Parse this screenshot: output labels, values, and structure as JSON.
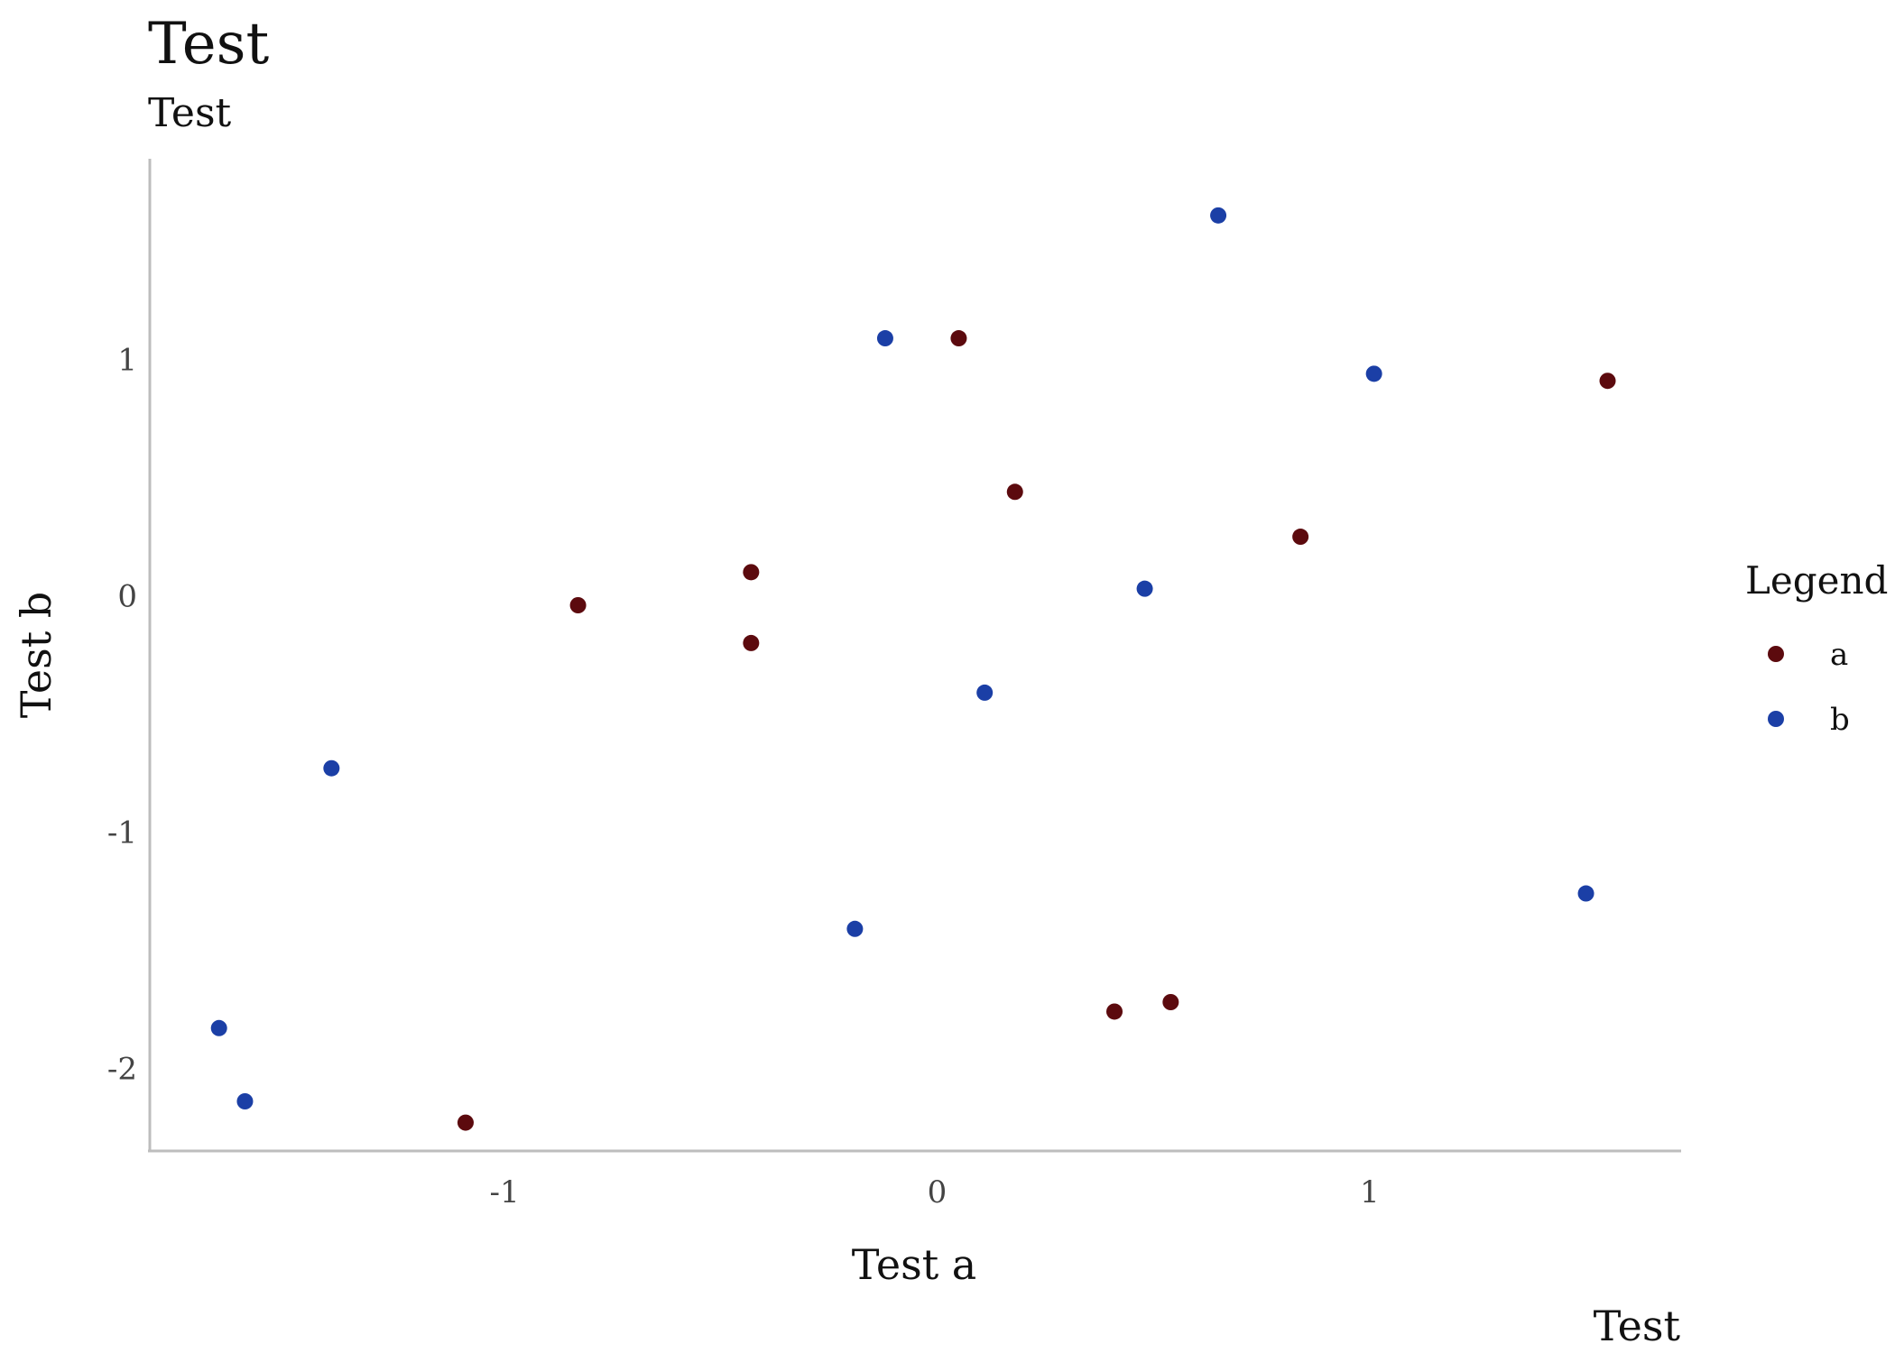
{
  "chart_data": {
    "type": "scatter",
    "title": "Test",
    "subtitle": "Test",
    "caption": "Test",
    "xlabel": "Test a",
    "ylabel": "Test b",
    "xlim": [
      -1.82,
      1.72
    ],
    "ylim": [
      -2.35,
      1.85
    ],
    "x_ticks": [
      {
        "value": -1,
        "label": "-1"
      },
      {
        "value": 0,
        "label": "0"
      },
      {
        "value": 1,
        "label": "1"
      }
    ],
    "y_ticks": [
      {
        "value": -2,
        "label": "-2"
      },
      {
        "value": -1,
        "label": "-1"
      },
      {
        "value": 0,
        "label": "0"
      },
      {
        "value": 1,
        "label": "1"
      }
    ],
    "grid": false,
    "legend": {
      "title": "Legend",
      "placement": "right"
    },
    "series": [
      {
        "name": "a",
        "color": "#5c0a0e",
        "points": [
          {
            "x": 0.05,
            "y": 1.09
          },
          {
            "x": 1.55,
            "y": 0.91
          },
          {
            "x": 0.18,
            "y": 0.44
          },
          {
            "x": 0.84,
            "y": 0.25
          },
          {
            "x": -0.43,
            "y": 0.1
          },
          {
            "x": -0.83,
            "y": -0.04
          },
          {
            "x": -0.43,
            "y": -0.2
          },
          {
            "x": 0.54,
            "y": -1.72
          },
          {
            "x": 0.41,
            "y": -1.76
          },
          {
            "x": -1.09,
            "y": -2.23
          }
        ]
      },
      {
        "name": "b",
        "color": "#1b3fa6",
        "points": [
          {
            "x": 0.65,
            "y": 1.61
          },
          {
            "x": -0.12,
            "y": 1.09
          },
          {
            "x": 1.01,
            "y": 0.94
          },
          {
            "x": 0.48,
            "y": 0.03
          },
          {
            "x": 0.11,
            "y": -0.41
          },
          {
            "x": -1.4,
            "y": -0.73
          },
          {
            "x": 1.5,
            "y": -1.26
          },
          {
            "x": -0.19,
            "y": -1.41
          },
          {
            "x": -1.66,
            "y": -1.83
          },
          {
            "x": -1.6,
            "y": -2.14
          }
        ]
      }
    ]
  }
}
